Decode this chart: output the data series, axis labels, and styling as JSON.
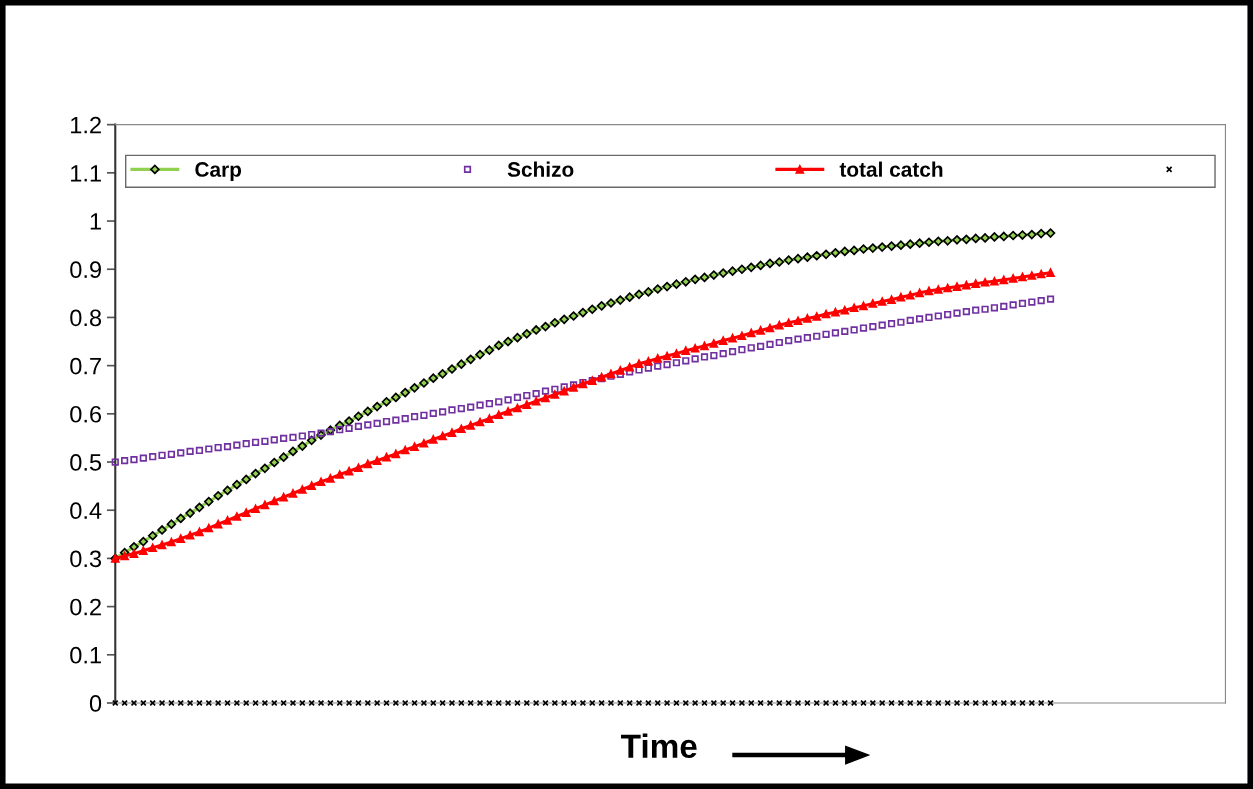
{
  "chart_data": {
    "type": "line",
    "xlabel": "Time",
    "categories": [
      null,
      null,
      null,
      null,
      null,
      null,
      null,
      null,
      null,
      null,
      null,
      null,
      null,
      null,
      null,
      null,
      null,
      null,
      null,
      null,
      null,
      null,
      null,
      null,
      null,
      null,
      null,
      null,
      null,
      null,
      null,
      null,
      null,
      null,
      null,
      null,
      null,
      null,
      null,
      null,
      null,
      null,
      null,
      null,
      null,
      null,
      null,
      null,
      null,
      null,
      null,
      null,
      null,
      null,
      null,
      null,
      null,
      null,
      null,
      null,
      null,
      null,
      null,
      null,
      null,
      null,
      null,
      null,
      null,
      null,
      null,
      null,
      null,
      null,
      null,
      null,
      null,
      null,
      null,
      null,
      null,
      null,
      null,
      null,
      null,
      null,
      null,
      null,
      null,
      null,
      null,
      null,
      null,
      null,
      null,
      null,
      null,
      null,
      null,
      null,
      null
    ],
    "ylim": [
      0,
      1.2
    ],
    "yticks": [
      0,
      0.1,
      0.2,
      0.3,
      0.4,
      0.5,
      0.6,
      0.7,
      0.8,
      0.9,
      1,
      1.1,
      1.2
    ],
    "grid": false,
    "legend": "top",
    "series": [
      {
        "name": "Carp",
        "color": "#92d050",
        "marker": "diamond",
        "line_style": "solid",
        "values": [
          0.3,
          0.312,
          0.324,
          0.335,
          0.347,
          0.359,
          0.371,
          0.383,
          0.394,
          0.406,
          0.418,
          0.43,
          0.441,
          0.453,
          0.464,
          0.476,
          0.487,
          0.499,
          0.51,
          0.522,
          0.533,
          0.545,
          0.556,
          0.566,
          0.576,
          0.585,
          0.595,
          0.605,
          0.615,
          0.625,
          0.634,
          0.644,
          0.654,
          0.664,
          0.674,
          0.683,
          0.693,
          0.703,
          0.713,
          0.723,
          0.732,
          0.742,
          0.75,
          0.758,
          0.766,
          0.774,
          0.781,
          0.789,
          0.796,
          0.803,
          0.81,
          0.817,
          0.824,
          0.83,
          0.836,
          0.842,
          0.848,
          0.853,
          0.859,
          0.864,
          0.869,
          0.874,
          0.879,
          0.883,
          0.888,
          0.892,
          0.896,
          0.9,
          0.904,
          0.908,
          0.912,
          0.915,
          0.919,
          0.922,
          0.925,
          0.928,
          0.931,
          0.934,
          0.937,
          0.939,
          0.942,
          0.944,
          0.946,
          0.948,
          0.95,
          0.952,
          0.954,
          0.956,
          0.958,
          0.959,
          0.961,
          0.962,
          0.964,
          0.965,
          0.967,
          0.968,
          0.97,
          0.971,
          0.972,
          0.974,
          0.975
        ]
      },
      {
        "name": "Schizo",
        "type": "scatter",
        "color": "#7030a0",
        "marker": "square",
        "values": [
          0.5,
          0.503,
          0.505,
          0.508,
          0.511,
          0.514,
          0.516,
          0.519,
          0.522,
          0.524,
          0.527,
          0.53,
          0.532,
          0.535,
          0.538,
          0.541,
          0.543,
          0.546,
          0.549,
          0.551,
          0.554,
          0.557,
          0.56,
          0.563,
          0.567,
          0.57,
          0.574,
          0.577,
          0.58,
          0.584,
          0.587,
          0.59,
          0.594,
          0.597,
          0.601,
          0.604,
          0.608,
          0.611,
          0.614,
          0.618,
          0.621,
          0.625,
          0.629,
          0.634,
          0.638,
          0.642,
          0.647,
          0.651,
          0.656,
          0.66,
          0.665,
          0.669,
          0.673,
          0.678,
          0.682,
          0.687,
          0.691,
          0.695,
          0.699,
          0.702,
          0.706,
          0.71,
          0.714,
          0.718,
          0.721,
          0.725,
          0.729,
          0.733,
          0.737,
          0.74,
          0.744,
          0.748,
          0.752,
          0.755,
          0.758,
          0.761,
          0.765,
          0.768,
          0.771,
          0.774,
          0.778,
          0.781,
          0.784,
          0.787,
          0.79,
          0.794,
          0.797,
          0.8,
          0.803,
          0.806,
          0.809,
          0.812,
          0.815,
          0.817,
          0.82,
          0.823,
          0.826,
          0.829,
          0.832,
          0.835,
          0.838
        ]
      },
      {
        "name": "total catch",
        "color": "#ff0000",
        "marker": "triangle",
        "line_style": "solid",
        "values": [
          0.3,
          0.305,
          0.31,
          0.316,
          0.322,
          0.328,
          0.334,
          0.341,
          0.348,
          0.355,
          0.363,
          0.371,
          0.379,
          0.387,
          0.395,
          0.403,
          0.411,
          0.419,
          0.427,
          0.435,
          0.443,
          0.451,
          0.459,
          0.466,
          0.474,
          0.481,
          0.488,
          0.496,
          0.503,
          0.51,
          0.517,
          0.525,
          0.532,
          0.539,
          0.547,
          0.554,
          0.561,
          0.569,
          0.576,
          0.583,
          0.59,
          0.598,
          0.605,
          0.612,
          0.619,
          0.626,
          0.633,
          0.64,
          0.647,
          0.655,
          0.662,
          0.669,
          0.676,
          0.683,
          0.69,
          0.697,
          0.704,
          0.709,
          0.715,
          0.72,
          0.725,
          0.731,
          0.736,
          0.741,
          0.746,
          0.752,
          0.757,
          0.762,
          0.768,
          0.773,
          0.778,
          0.784,
          0.789,
          0.793,
          0.798,
          0.802,
          0.807,
          0.811,
          0.815,
          0.82,
          0.824,
          0.829,
          0.833,
          0.837,
          0.842,
          0.846,
          0.851,
          0.855,
          0.858,
          0.861,
          0.864,
          0.867,
          0.87,
          0.873,
          0.875,
          0.878,
          0.881,
          0.884,
          0.887,
          0.89,
          0.893
        ]
      },
      {
        "type": "scatter",
        "color": "#000000",
        "marker": "cross",
        "values": [
          0,
          0,
          0,
          0,
          0,
          0,
          0,
          0,
          0,
          0,
          0,
          0,
          0,
          0,
          0,
          0,
          0,
          0,
          0,
          0,
          0,
          0,
          0,
          0,
          0,
          0,
          0,
          0,
          0,
          0,
          0,
          0,
          0,
          0,
          0,
          0,
          0,
          0,
          0,
          0,
          0,
          0,
          0,
          0,
          0,
          0,
          0,
          0,
          0,
          0,
          0,
          0,
          0,
          0,
          0,
          0,
          0,
          0,
          0,
          0,
          0,
          0,
          0,
          0,
          0,
          0,
          0,
          0,
          0,
          0,
          0,
          0,
          0,
          0,
          0,
          0,
          0,
          0,
          0,
          0,
          0,
          0,
          0,
          0,
          0,
          0,
          0,
          0,
          0,
          0,
          0,
          0,
          0,
          0,
          0,
          0,
          0,
          0,
          0,
          0,
          0
        ]
      }
    ]
  }
}
